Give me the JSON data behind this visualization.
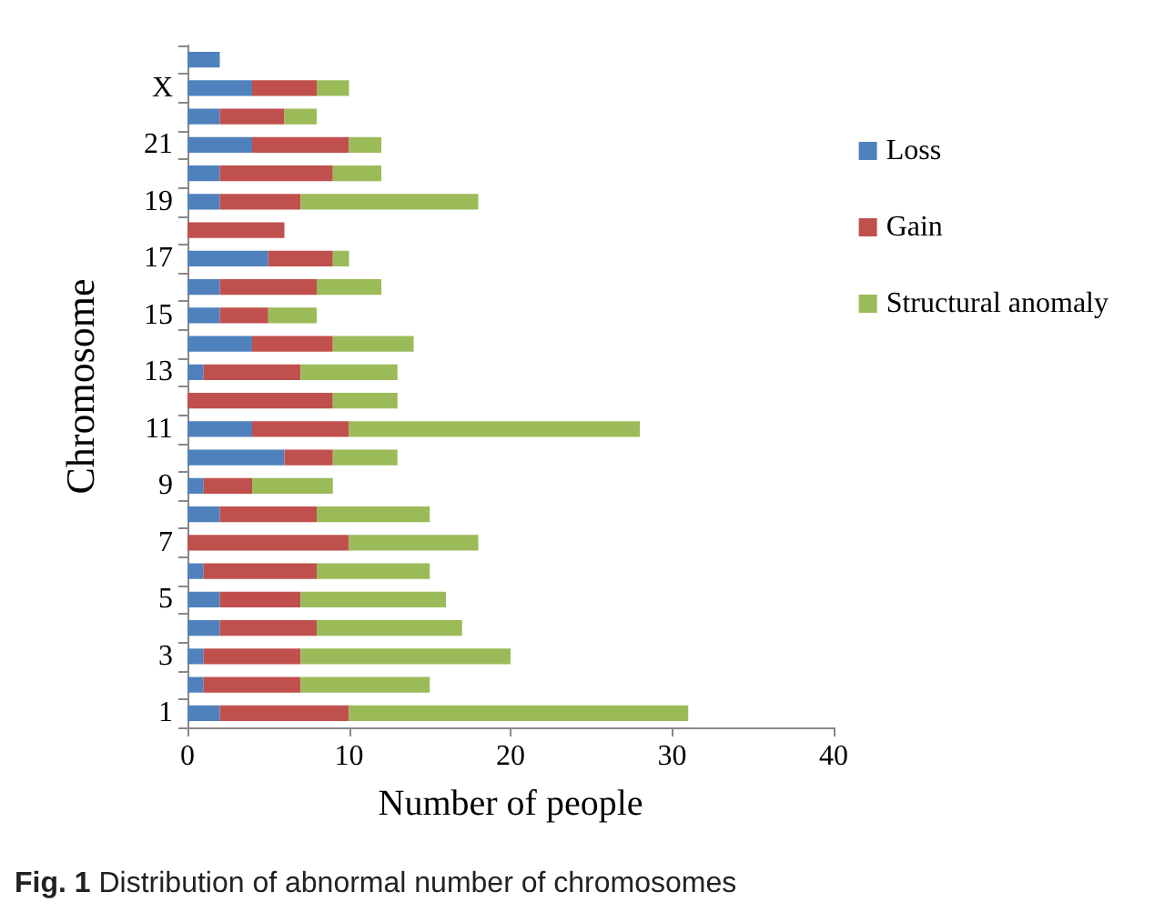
{
  "chart_data": {
    "type": "bar",
    "orientation": "horizontal",
    "stacked": true,
    "xlabel": "Number of people",
    "ylabel": "Chromosome",
    "annotations": [
      "Fig. 1 Distribution of abnormal number of chromosomes"
    ],
    "categories": [
      null,
      "X",
      null,
      "21",
      null,
      "19",
      null,
      "17",
      null,
      "15",
      null,
      "13",
      null,
      "11",
      null,
      "9",
      null,
      "7",
      null,
      "5",
      null,
      "3",
      null,
      "1"
    ],
    "series": [
      {
        "name": "Loss",
        "color": "#4f81bd",
        "values": [
          2,
          4,
          2,
          4,
          2,
          2,
          0,
          5,
          2,
          2,
          4,
          1,
          0,
          4,
          6,
          1,
          2,
          0,
          1,
          2,
          2,
          1,
          1,
          2
        ]
      },
      {
        "name": "Gain",
        "color": "#c0504d",
        "values": [
          0,
          4,
          4,
          6,
          7,
          5,
          6,
          4,
          6,
          3,
          5,
          6,
          9,
          6,
          3,
          3,
          6,
          10,
          7,
          5,
          6,
          6,
          6,
          8
        ]
      },
      {
        "name": "Structural anomaly",
        "color": "#9bbb59",
        "values": [
          0,
          2,
          2,
          2,
          3,
          11,
          0,
          1,
          4,
          3,
          5,
          6,
          4,
          18,
          4,
          5,
          7,
          8,
          7,
          9,
          9,
          13,
          8,
          21
        ]
      }
    ],
    "xlim": [
      0,
      40
    ],
    "xticks": [
      0,
      10,
      20,
      30,
      40
    ],
    "grid": false,
    "legend": "right"
  }
}
